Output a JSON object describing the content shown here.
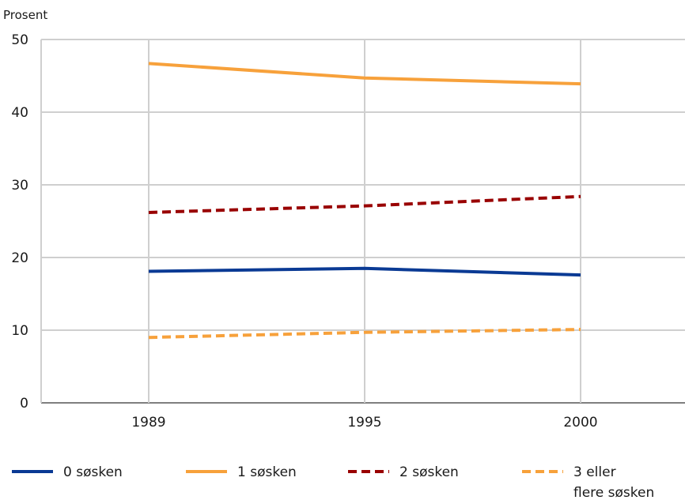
{
  "chart_data": {
    "type": "line",
    "ylabel": "Prosent",
    "xlabel": "",
    "title": "",
    "categories": [
      "1989",
      "1995",
      "2000"
    ],
    "ylim": [
      0,
      50
    ],
    "yticks": [
      0,
      10,
      20,
      30,
      40,
      50
    ],
    "grid": true,
    "legend_position": "bottom",
    "series": [
      {
        "name": "0 søsken",
        "values": [
          18.1,
          18.5,
          17.6
        ],
        "color": "#0a3a94",
        "dashed": false
      },
      {
        "name": "1 søsken",
        "values": [
          46.7,
          44.7,
          43.9
        ],
        "color": "#f7a13b",
        "dashed": false
      },
      {
        "name": "2 søsken",
        "values": [
          26.2,
          27.1,
          28.4
        ],
        "color": "#990000",
        "dashed": true
      },
      {
        "name": "3 eller flere søsken",
        "legend_lines": [
          "3 eller",
          "flere søsken"
        ],
        "values": [
          9.0,
          9.7,
          10.1
        ],
        "color": "#f7a13b",
        "dashed": true
      }
    ]
  }
}
